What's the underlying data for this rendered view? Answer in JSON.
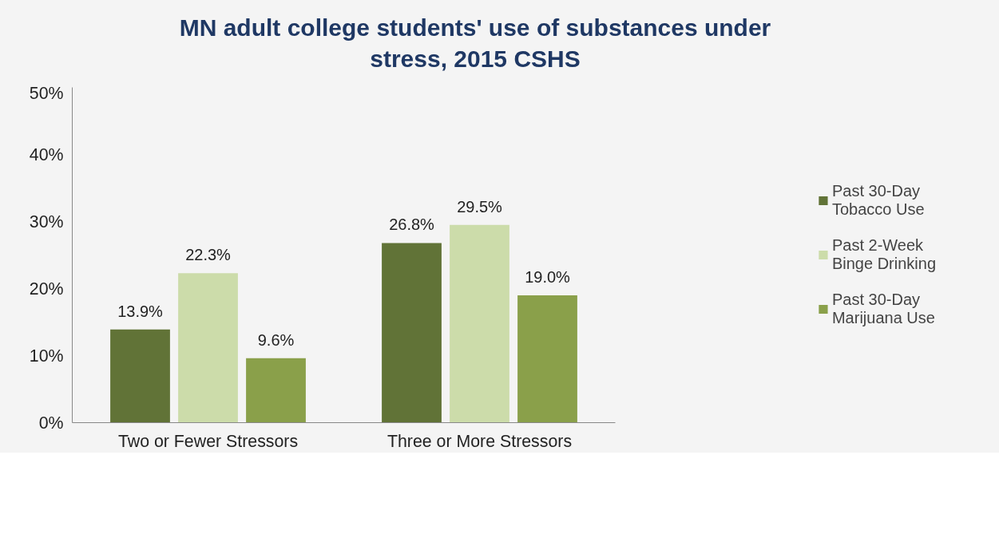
{
  "chart_data": {
    "type": "bar",
    "title": "MN adult college students' use of substances under stress, 2015 CSHS",
    "categories": [
      "Two or Fewer Stressors",
      "Three or More Stressors"
    ],
    "series": [
      {
        "name": "Past 30-Day Tobacco Use",
        "color": "#617337",
        "values": [
          13.9,
          26.8
        ],
        "value_labels": [
          "13.9%",
          "26.8%"
        ]
      },
      {
        "name": "Past 2-Week Binge Drinking",
        "color": "#ccdcaa",
        "values": [
          22.3,
          29.5
        ],
        "value_labels": [
          "22.3%",
          "29.5%"
        ]
      },
      {
        "name": "Past 30-Day Marijuana Use",
        "color": "#8aa04a",
        "values": [
          9.6,
          19.0
        ],
        "value_labels": [
          "9.6%",
          "19.0%"
        ]
      }
    ],
    "ylim": [
      0,
      50
    ],
    "yticks": [
      {
        "value": 0,
        "label": "0%"
      },
      {
        "value": 10,
        "label": "10%"
      },
      {
        "value": 20,
        "label": "20%"
      },
      {
        "value": 30,
        "label": "30%"
      },
      {
        "value": 40,
        "label": "40%"
      },
      {
        "value": 50,
        "label": "50%"
      }
    ],
    "grid": false,
    "legend": "right"
  }
}
